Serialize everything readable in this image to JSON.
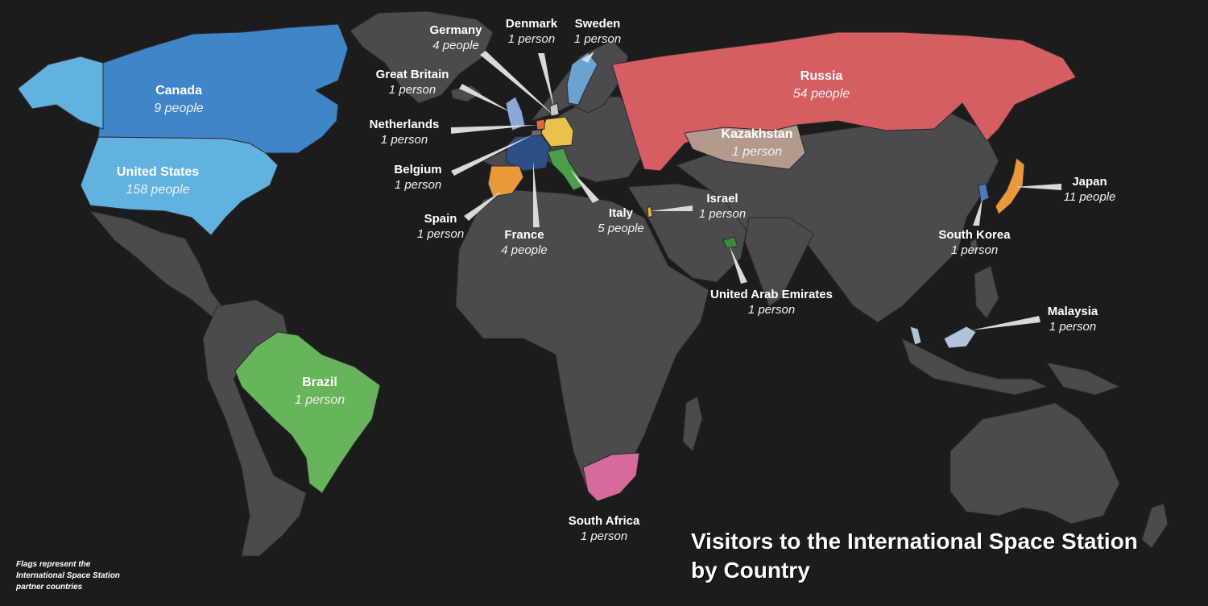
{
  "title": {
    "line1": "Visitors to the International Space Station",
    "line2": "by Country"
  },
  "footnote": {
    "line1": "Flags represent the",
    "line2": "International Space Station",
    "line3": "partner countries"
  },
  "countries": {
    "canada": {
      "name": "Canada",
      "count": "9 people",
      "color": "#3e86c8"
    },
    "united_states": {
      "name": "United States",
      "count": "158 people",
      "color": "#62b2e0"
    },
    "brazil": {
      "name": "Brazil",
      "count": "1 person",
      "color": "#66b55a"
    },
    "russia": {
      "name": "Russia",
      "count": "54 people",
      "color": "#d65d62"
    },
    "kazakhstan": {
      "name": "Kazakhstan",
      "count": "1 person",
      "color": "#b39a8c"
    },
    "germany": {
      "name": "Germany",
      "count": "4 people",
      "color": "#e8c24a"
    },
    "denmark": {
      "name": "Denmark",
      "count": "1 person",
      "color": "#c8c8c8"
    },
    "sweden": {
      "name": "Sweden",
      "count": "1 person",
      "color": "#6aa2d0"
    },
    "great_britain": {
      "name": "Great Britain",
      "count": "1 person",
      "color": "#8aa8d8"
    },
    "netherlands": {
      "name": "Netherlands",
      "count": "1 person",
      "color": "#e06a3a"
    },
    "belgium": {
      "name": "Belgium",
      "count": "1 person",
      "color": "#6a6a6a"
    },
    "spain": {
      "name": "Spain",
      "count": "1 person",
      "color": "#e89a3a"
    },
    "france": {
      "name": "France",
      "count": "4 people",
      "color": "#2e4e88"
    },
    "italy": {
      "name": "Italy",
      "count": "5 people",
      "color": "#4aa04a"
    },
    "israel": {
      "name": "Israel",
      "count": "1 person",
      "color": "#e8b830"
    },
    "uae": {
      "name": "United Arab Emirates",
      "count": "1 person",
      "color": "#3a8a3a"
    },
    "japan": {
      "name": "Japan",
      "count": "11 people",
      "color": "#e89a3a"
    },
    "south_korea": {
      "name": "South Korea",
      "count": "1 person",
      "color": "#4a7ac0"
    },
    "malaysia": {
      "name": "Malaysia",
      "count": "1 person",
      "color": "#b0c4d8"
    },
    "south_africa": {
      "name": "South Africa",
      "count": "1 person",
      "color": "#d66a9a"
    }
  }
}
